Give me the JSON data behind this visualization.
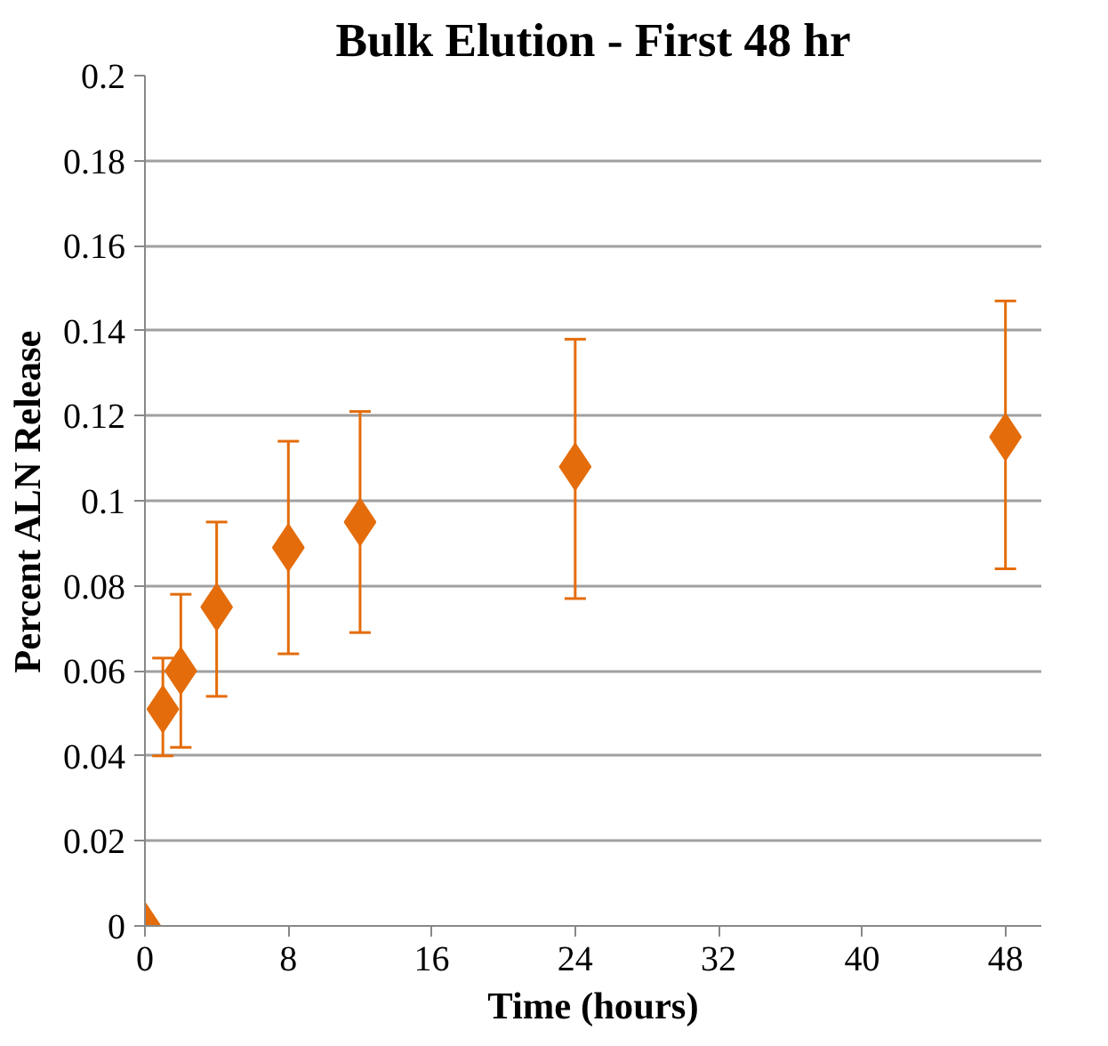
{
  "chart_data": {
    "type": "scatter",
    "title": "Bulk Elution - First 48 hr",
    "xlabel": "Time (hours)",
    "ylabel": "Percent ALN Release",
    "x": [
      0,
      1,
      2,
      4,
      8,
      12,
      24,
      48
    ],
    "values": [
      0,
      0.051,
      0.06,
      0.075,
      0.089,
      0.095,
      0.108,
      0.115
    ],
    "errors": [
      null,
      [
        0.04,
        0.063
      ],
      [
        0.042,
        0.078
      ],
      [
        0.054,
        0.095
      ],
      [
        0.064,
        0.114
      ],
      [
        0.069,
        0.121
      ],
      [
        0.077,
        0.138
      ],
      [
        0.084,
        0.147
      ]
    ],
    "color": "#e46c0a",
    "marker": "diamond",
    "xlim": [
      0,
      50
    ],
    "xticks": [
      0,
      8,
      16,
      24,
      32,
      40,
      48
    ],
    "ylim": [
      0,
      0.2
    ],
    "yticks": [
      {
        "value": 0,
        "label": "0"
      },
      {
        "value": 0.02,
        "label": "0.02"
      },
      {
        "value": 0.04,
        "label": "0.04"
      },
      {
        "value": 0.06,
        "label": "0.06"
      },
      {
        "value": 0.08,
        "label": "0.08"
      },
      {
        "value": 0.1,
        "label": "0.1"
      },
      {
        "value": 0.12,
        "label": "0.12"
      },
      {
        "value": 0.14,
        "label": "0.14"
      },
      {
        "value": 0.16,
        "label": "0.16"
      },
      {
        "value": 0.18,
        "label": "0.18"
      },
      {
        "value": 0.2,
        "label": "0.2"
      }
    ],
    "grid": "y"
  }
}
